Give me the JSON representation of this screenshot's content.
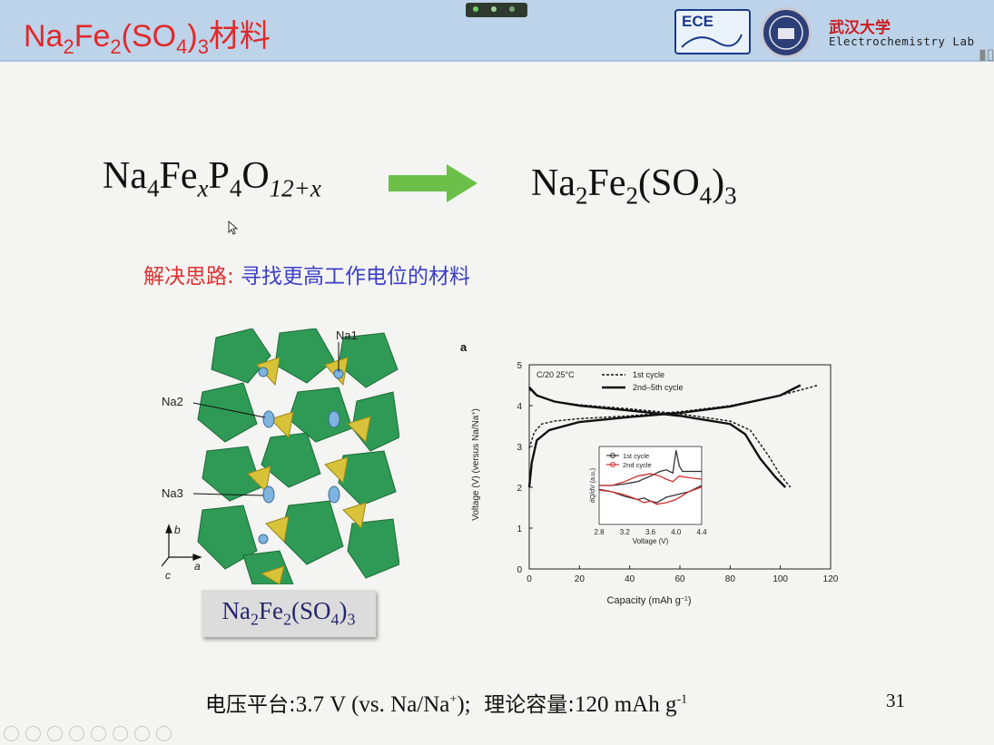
{
  "header": {
    "title_parts": {
      "a": "Na",
      "s1": "2",
      "b": "Fe",
      "s2": "2",
      "c": "(SO",
      "s3": "4",
      "d": ")",
      "s4": "3",
      "e": "材料"
    },
    "logo_text": "ECE",
    "university": "武汉大学",
    "lab": "Electrochemistry Lab"
  },
  "formula_left": {
    "a": "Na",
    "s1": "4",
    "b": "Fe",
    "s2": "x",
    "c": "P",
    "s3": "4",
    "d": "O",
    "s4": "12+x"
  },
  "formula_right": {
    "a": "Na",
    "s1": "2",
    "b": "Fe",
    "s2": "2",
    "c": "(SO",
    "s3": "4",
    "d": ")",
    "s4": "3"
  },
  "idea": {
    "lead": "解决思路:",
    "rest": " 寻找更高工作电位的材料"
  },
  "structure": {
    "labels": [
      "Na1",
      "Na2",
      "Na3"
    ],
    "axes": [
      "b",
      "a",
      "c"
    ],
    "caption": {
      "a": "Na",
      "s1": "2",
      "b": "Fe",
      "s2": "2",
      "c": "(SO",
      "s3": "4",
      "d": ")",
      "s4": "3"
    }
  },
  "bottom": {
    "label1": "电压平台:",
    "value1": "3.7 V (vs. Na/Na",
    "sup1": "+",
    "value1_end": ");",
    "label2": "理论容量:",
    "value2": "120 mAh g",
    "sup2": "-1"
  },
  "page_number": "31",
  "colors": {
    "header_bg": "#bcd3ea",
    "title": "#e02a2a",
    "arrow": "#6cc04a",
    "idea_lead": "#e03030",
    "idea_rest": "#3b3fc8"
  },
  "chart_data": {
    "type": "line",
    "panel_label": "a",
    "condition": "C/20 25°C",
    "xlabel": "Capacity (mAh g",
    "xlabel_sup": "−1",
    "xlabel_end": ")",
    "ylabel": "Voltage (V) (versus Na/Na",
    "ylabel_sup": "+",
    "ylabel_end": ")",
    "xlim": [
      0,
      120
    ],
    "ylim": [
      0,
      5
    ],
    "xticks": [
      "0",
      "20",
      "40",
      "60",
      "80",
      "100",
      "120"
    ],
    "yticks": [
      "0",
      "1",
      "2",
      "3",
      "4",
      "5"
    ],
    "series": [
      {
        "name": "1st cycle",
        "style": "dashed",
        "x": [
          0,
          2,
          5,
          10,
          20,
          40,
          60,
          80,
          100,
          115
        ],
        "y": [
          2.95,
          3.35,
          3.55,
          3.62,
          3.68,
          3.75,
          3.85,
          4.0,
          4.25,
          4.5
        ]
      },
      {
        "name": "1st cycle",
        "style": "dashed",
        "x": [
          0,
          3,
          10,
          20,
          40,
          60,
          80,
          88,
          95,
          100,
          104
        ],
        "y": [
          4.4,
          4.25,
          4.1,
          4.02,
          3.92,
          3.8,
          3.62,
          3.4,
          2.8,
          2.3,
          2.0
        ]
      },
      {
        "name": "2nd–5th cycle",
        "style": "solid",
        "x": [
          0,
          1,
          3,
          8,
          20,
          40,
          60,
          80,
          100,
          108
        ],
        "y": [
          2.0,
          2.6,
          3.15,
          3.4,
          3.6,
          3.72,
          3.82,
          3.98,
          4.25,
          4.5
        ]
      },
      {
        "name": "2nd–5th cycle",
        "style": "solid",
        "x": [
          0,
          3,
          10,
          20,
          40,
          60,
          80,
          86,
          92,
          98,
          102
        ],
        "y": [
          4.45,
          4.25,
          4.1,
          4.0,
          3.88,
          3.75,
          3.55,
          3.3,
          2.7,
          2.25,
          2.0
        ]
      }
    ],
    "inset": {
      "xlabel": "Voltage (V)",
      "ylabel": "dQ/dV (a.u.)",
      "xlim": [
        2.8,
        4.4
      ],
      "xticks": [
        "2.8",
        "3.2",
        "3.6",
        "4.0",
        "4.4"
      ],
      "series": [
        {
          "name": "1st cycle",
          "color": "#333333",
          "x": [
            2.8,
            3.0,
            3.2,
            3.4,
            3.6,
            3.75,
            3.85,
            3.95,
            4.0,
            4.05,
            4.1,
            4.4
          ],
          "y": [
            0.5,
            0.5,
            0.52,
            0.55,
            0.62,
            0.68,
            0.7,
            0.66,
            0.95,
            0.75,
            0.68,
            0.68
          ]
        },
        {
          "name": "2nd cycle",
          "color": "#d03030",
          "x": [
            2.8,
            3.0,
            3.2,
            3.4,
            3.6,
            3.75,
            3.85,
            3.95,
            4.05,
            4.2,
            4.4
          ],
          "y": [
            0.5,
            0.5,
            0.55,
            0.62,
            0.65,
            0.62,
            0.58,
            0.55,
            0.62,
            0.6,
            0.58
          ]
        },
        {
          "name": "1st cycle",
          "color": "#333333",
          "x": [
            4.4,
            4.2,
            4.0,
            3.85,
            3.7,
            3.6,
            3.5,
            3.4,
            3.2,
            3.0,
            2.8
          ],
          "y": [
            0.5,
            0.42,
            0.38,
            0.35,
            0.28,
            0.3,
            0.34,
            0.32,
            0.36,
            0.42,
            0.45
          ]
        },
        {
          "name": "2nd cycle",
          "color": "#d03030",
          "x": [
            4.4,
            4.2,
            4.0,
            3.85,
            3.7,
            3.6,
            3.5,
            3.4,
            3.2,
            3.0,
            2.8
          ],
          "y": [
            0.48,
            0.42,
            0.32,
            0.28,
            0.26,
            0.3,
            0.28,
            0.32,
            0.38,
            0.42,
            0.44
          ]
        }
      ]
    }
  }
}
